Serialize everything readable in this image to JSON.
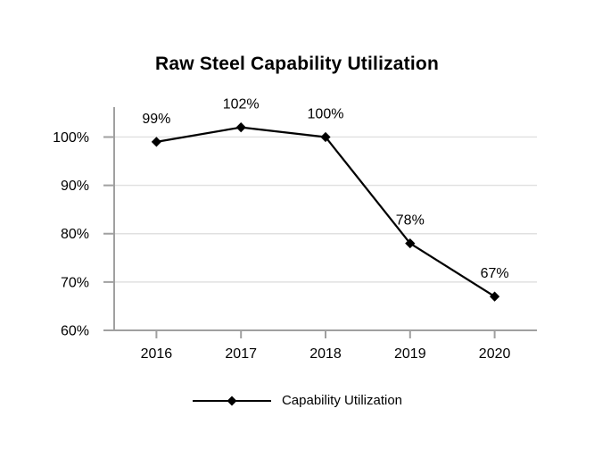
{
  "title": "Raw Steel Capability Utilization",
  "legend": {
    "label": "Capability Utilization",
    "marker_icon": "diamond-icon"
  },
  "colors": {
    "background": "#ffffff",
    "text": "#000000",
    "series_line": "#000000",
    "series_marker": "#000000",
    "grid": "#e0e0e0",
    "axis": "#a0a0a0"
  },
  "chart_data": {
    "type": "line",
    "title": "Raw Steel Capability Utilization",
    "categories": [
      "2016",
      "2017",
      "2018",
      "2019",
      "2020"
    ],
    "series": [
      {
        "name": "Capability Utilization",
        "values": [
          99,
          102,
          100,
          78,
          67
        ],
        "marker": "diamond",
        "color": "#000000"
      }
    ],
    "data_labels": [
      "99%",
      "102%",
      "100%",
      "78%",
      "67%"
    ],
    "xlabel": "",
    "ylabel": "",
    "ylim": [
      60,
      106
    ],
    "yticks": [
      60,
      70,
      80,
      90,
      100
    ],
    "ytick_labels": [
      "60%",
      "70%",
      "80%",
      "90%",
      "100%"
    ],
    "grid": true,
    "legend_position": "bottom"
  }
}
